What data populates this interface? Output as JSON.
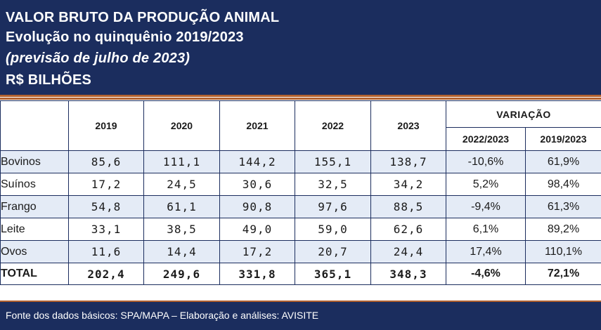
{
  "header": {
    "line1": "VALOR BRUTO DA PRODUÇÃO ANIMAL",
    "line2": "Evolução no quinquênio 2019/2023",
    "line3": "(previsão de julho de 2023)",
    "line4": "R$ BILHÕES"
  },
  "table": {
    "years": [
      "2019",
      "2020",
      "2021",
      "2022",
      "2023"
    ],
    "variation_label": "VARIAÇÃO",
    "variation_cols": [
      "2022/2023",
      "2019/2023"
    ],
    "rows": [
      {
        "name": "Bovinos",
        "values": [
          "85,6",
          "111,1",
          "144,2",
          "155,1",
          "138,7"
        ],
        "var_a": "-10,6%",
        "var_b": "61,9%"
      },
      {
        "name": "Suínos",
        "values": [
          "17,2",
          "24,5",
          "30,6",
          "32,5",
          "34,2"
        ],
        "var_a": "5,2%",
        "var_b": "98,4%"
      },
      {
        "name": "Frango",
        "values": [
          "54,8",
          "61,1",
          "90,8",
          "97,6",
          "88,5"
        ],
        "var_a": "-9,4%",
        "var_b": "61,3%"
      },
      {
        "name": "Leite",
        "values": [
          "33,1",
          "38,5",
          "49,0",
          "59,0",
          "62,6"
        ],
        "var_a": "6,1%",
        "var_b": "89,2%"
      },
      {
        "name": "Ovos",
        "values": [
          "11,6",
          "14,4",
          "17,2",
          "20,7",
          "24,4"
        ],
        "var_a": "17,4%",
        "var_b": "110,1%"
      },
      {
        "name": "TOTAL",
        "values": [
          "202,4",
          "249,6",
          "331,8",
          "365,1",
          "348,3"
        ],
        "var_a": "-4,6%",
        "var_b": "72,1%"
      }
    ]
  },
  "footer": {
    "source": "Fonte dos dados básicos: SPA/MAPA – Elaboração e análises: AVISITE"
  },
  "colors": {
    "navy": "#1b2d5e",
    "accent_orange": "#b3612e",
    "row_shade": "#e4ebf6",
    "negative_red": "#e01b1b"
  }
}
